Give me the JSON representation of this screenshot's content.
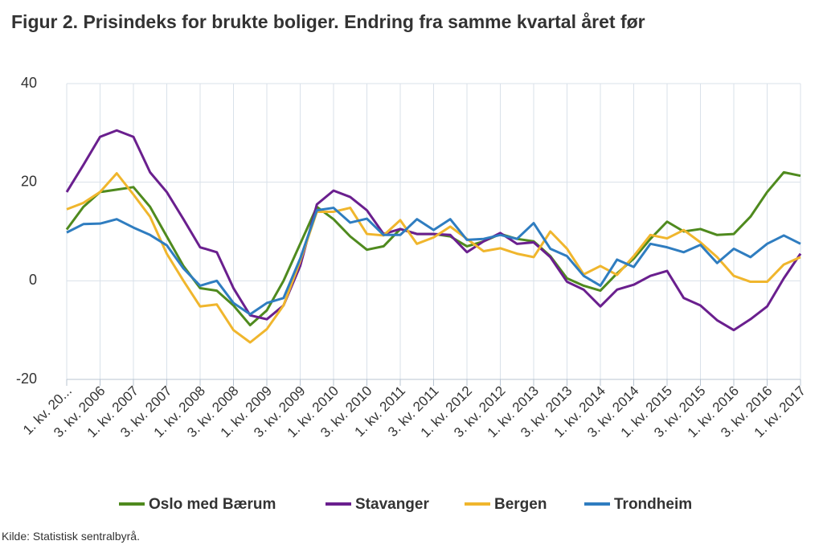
{
  "chart_data": {
    "type": "line",
    "title": "Figur 2. Prisindeks for brukte boliger. Endring fra samme kvartal året før",
    "source": "Kilde: Statistisk sentralbyrå.",
    "categories": [
      "1. kv. 20...",
      null,
      "3. kv. 2006",
      null,
      "1. kv. 2007",
      null,
      "3. kv. 2007",
      null,
      "1. kv. 2008",
      null,
      "3. kv. 2008",
      null,
      "1. kv. 2009",
      null,
      "3. kv. 2009",
      null,
      "1. kv. 2010",
      null,
      "3. kv. 2010",
      null,
      "1. kv. 2011",
      null,
      "3. kv. 2011",
      null,
      "1. kv. 2012",
      null,
      "3. kv. 2012",
      null,
      "1. kv. 2013",
      null,
      "3. kv. 2013",
      null,
      "1. kv. 2014",
      null,
      "3. kv. 2014",
      null,
      "1. kv. 2015",
      null,
      "3. kv. 2015",
      null,
      "1. kv. 2016",
      null,
      "3. kv. 2016",
      null,
      "1. kv. 2017"
    ],
    "ylim": [
      -20,
      40
    ],
    "yticks": [
      -20,
      0,
      20,
      40
    ],
    "grid": true,
    "legend": "bottom",
    "series": [
      {
        "name": "Oslo med Bærum",
        "color": "#4f8a1e",
        "values": [
          10.4,
          15,
          18,
          18.5,
          19,
          15,
          9,
          3,
          -1.5,
          -2,
          -5,
          -9,
          -6,
          0,
          7.5,
          15,
          12.5,
          9,
          6.3,
          7,
          10.5,
          9.5,
          9.5,
          9,
          7,
          8,
          9.5,
          8.5,
          8,
          5,
          0.5,
          -1,
          -2,
          1.5,
          4.5,
          8.5,
          12,
          10,
          10.5,
          9.3,
          9.5,
          13,
          18,
          22,
          21.3
        ]
      },
      {
        "name": "Stavanger",
        "color": "#6a1f8e",
        "values": [
          18,
          23.5,
          29.2,
          30.5,
          29.2,
          22,
          18,
          12.5,
          6.8,
          5.8,
          -1.5,
          -7,
          -7.8,
          -5,
          3,
          15.5,
          18.3,
          17,
          14.3,
          9.5,
          10.5,
          9.5,
          9.5,
          9.3,
          5.8,
          8,
          9.7,
          7.5,
          7.8,
          4.8,
          -0.2,
          -1.8,
          -5.2,
          -1.8,
          -0.8,
          1,
          2,
          -3.5,
          -5,
          -8,
          -10,
          -7.8,
          -5.2,
          0.5,
          5.5
        ]
      },
      {
        "name": "Bergen",
        "color": "#f0b62d",
        "values": [
          14.5,
          15.8,
          18,
          21.8,
          17.5,
          13,
          5.5,
          0,
          -5.2,
          -4.8,
          -10,
          -12.5,
          -9.8,
          -5,
          4,
          14,
          14,
          14.8,
          9.5,
          9.2,
          12.3,
          7.5,
          8.8,
          11,
          8.5,
          6,
          6.6,
          5.5,
          4.8,
          10,
          6.5,
          1.3,
          3,
          1.2,
          5,
          9.3,
          8.6,
          10.3,
          7.8,
          4.8,
          1,
          -0.2,
          -0.2,
          3.3,
          4.8
        ]
      },
      {
        "name": "Trondheim",
        "color": "#2f7dc0",
        "values": [
          9.8,
          11.5,
          11.6,
          12.5,
          10.8,
          9.3,
          7.2,
          2.5,
          -1,
          0,
          -4.5,
          -6.8,
          -4.5,
          -3.5,
          4.5,
          14.3,
          14.8,
          11.8,
          12.6,
          9.3,
          9.3,
          12.5,
          10.3,
          12.5,
          8.3,
          8.5,
          9.3,
          8.5,
          11.7,
          6.5,
          5,
          1,
          -1,
          4.3,
          2.8,
          7.5,
          6.8,
          5.8,
          7.3,
          3.6,
          6.5,
          4.8,
          7.5,
          9.2,
          7.5
        ]
      }
    ]
  }
}
